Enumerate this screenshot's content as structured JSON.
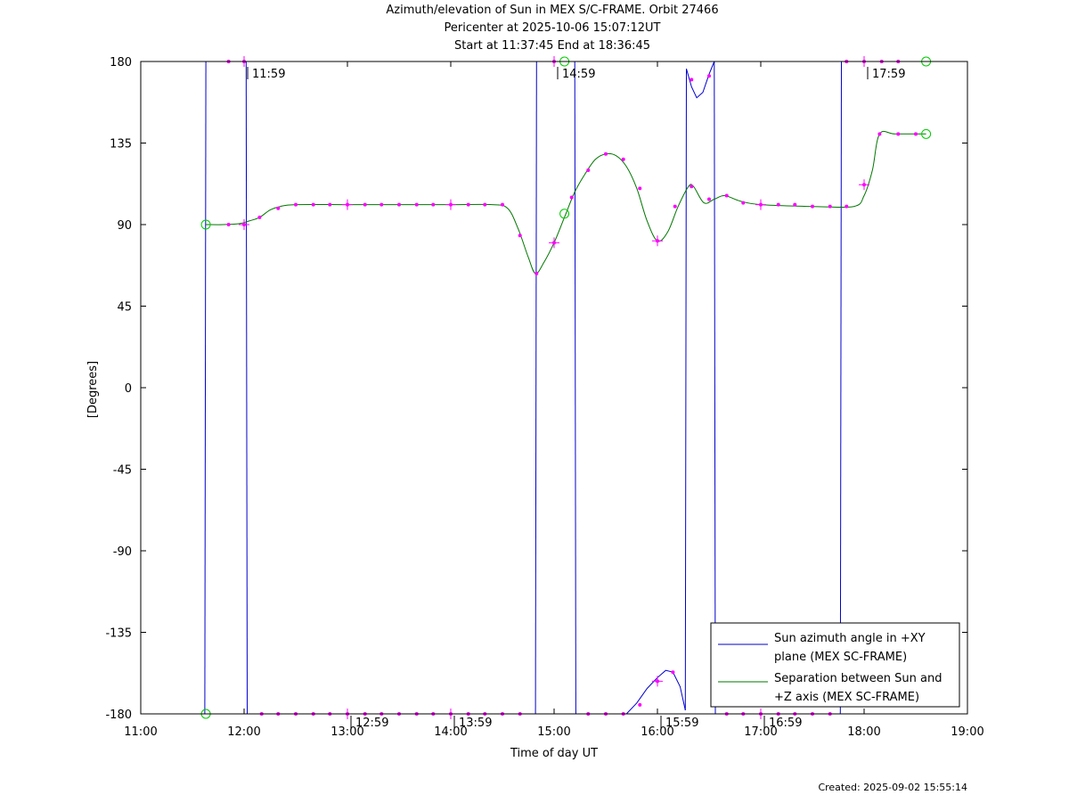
{
  "title": {
    "line1": "Azimuth/elevation of Sun in MEX S/C-FRAME.  Orbit 27466",
    "line2": "Pericenter at 2025-10-06 15:07:12UT",
    "line3": "Start at 11:37:45 End at 18:36:45"
  },
  "created": "Created: 2025-09-02 15:55:14",
  "chart_data": {
    "type": "line",
    "title": "Azimuth/elevation of Sun in MEX S/C-FRAME.  Orbit 27466",
    "xlabel": "Time of day UT",
    "ylabel": "[Degrees]",
    "x_unit": "hours of day UT",
    "xlim": [
      11.0,
      19.0
    ],
    "ylim": [
      -180,
      180
    ],
    "x_ticks": [
      "11:00",
      "12:00",
      "13:00",
      "14:00",
      "15:00",
      "16:00",
      "17:00",
      "18:00",
      "19:00"
    ],
    "y_ticks": [
      "180",
      "135",
      "90",
      "45",
      "0",
      "-45",
      "-90",
      "-135",
      "-180"
    ],
    "y_tick_values": [
      180,
      135,
      90,
      45,
      0,
      -45,
      -90,
      -135,
      -180
    ],
    "grid": false,
    "legend_position": "bottom-right",
    "colors": {
      "azimuth": "#0000cc",
      "separation": "#007700",
      "markers": "#ff00ff",
      "endpoints": "#00cc00"
    },
    "series": [
      {
        "name": "Sun azimuth angle in +XY plane (MEX SC-FRAME)",
        "legend_lines": [
          "Sun azimuth angle in +XY",
          "plane (MEX SC-FRAME)"
        ],
        "color": "#0000cc",
        "segments": [
          [
            [
              11.62,
              -180
            ],
            [
              11.63,
              180
            ]
          ],
          [
            [
              11.63,
              180
            ],
            [
              12.02,
              180
            ]
          ],
          [
            [
              12.02,
              180
            ],
            [
              12.03,
              -180
            ]
          ],
          [
            [
              12.03,
              -180
            ],
            [
              14.82,
              -180
            ]
          ],
          [
            [
              14.82,
              -180
            ],
            [
              14.83,
              180
            ]
          ],
          [
            [
              14.83,
              180
            ],
            [
              15.2,
              180
            ]
          ],
          [
            [
              15.2,
              180
            ],
            [
              15.21,
              -180
            ]
          ],
          [
            [
              15.21,
              -180
            ],
            [
              15.7,
              -180
            ],
            [
              15.8,
              -174
            ],
            [
              15.9,
              -166
            ],
            [
              16.0,
              -160
            ],
            [
              16.08,
              -156
            ],
            [
              16.15,
              -157
            ],
            [
              16.22,
              -165
            ],
            [
              16.27,
              -178
            ]
          ],
          [
            [
              16.27,
              -178
            ],
            [
              16.28,
              176
            ],
            [
              16.33,
              166
            ],
            [
              16.38,
              160
            ],
            [
              16.44,
              163
            ],
            [
              16.5,
              173
            ],
            [
              16.55,
              180
            ]
          ],
          [
            [
              16.55,
              180
            ],
            [
              16.56,
              -180
            ]
          ],
          [
            [
              16.56,
              -180
            ],
            [
              17.77,
              -180
            ]
          ],
          [
            [
              17.77,
              -180
            ],
            [
              17.78,
              180
            ]
          ],
          [
            [
              17.78,
              180
            ],
            [
              18.6,
              180
            ]
          ]
        ]
      },
      {
        "name": "Separation between Sun and +Z axis (MEX SC-FRAME)",
        "legend_lines": [
          "Separation between Sun and",
          "+Z axis (MEX SC-FRAME)"
        ],
        "color": "#007700",
        "points": [
          [
            11.63,
            90
          ],
          [
            11.8,
            90
          ],
          [
            11.95,
            90.5
          ],
          [
            12.05,
            92
          ],
          [
            12.15,
            94
          ],
          [
            12.25,
            98
          ],
          [
            12.35,
            100
          ],
          [
            12.5,
            101
          ],
          [
            13.0,
            101
          ],
          [
            13.5,
            101
          ],
          [
            14.0,
            101
          ],
          [
            14.4,
            101
          ],
          [
            14.55,
            99
          ],
          [
            14.65,
            88
          ],
          [
            14.75,
            72
          ],
          [
            14.82,
            63
          ],
          [
            14.9,
            69
          ],
          [
            15.0,
            80
          ],
          [
            15.1,
            94
          ],
          [
            15.2,
            108
          ],
          [
            15.3,
            118
          ],
          [
            15.4,
            126
          ],
          [
            15.5,
            129
          ],
          [
            15.6,
            128
          ],
          [
            15.7,
            122
          ],
          [
            15.8,
            110
          ],
          [
            15.9,
            92
          ],
          [
            16.0,
            81
          ],
          [
            16.1,
            86
          ],
          [
            16.2,
            100
          ],
          [
            16.3,
            111
          ],
          [
            16.35,
            111
          ],
          [
            16.45,
            102
          ],
          [
            16.55,
            104
          ],
          [
            16.65,
            106
          ],
          [
            16.8,
            103
          ],
          [
            17.0,
            101
          ],
          [
            17.5,
            100
          ],
          [
            17.9,
            100
          ],
          [
            18.0,
            106
          ],
          [
            18.08,
            120
          ],
          [
            18.15,
            140
          ],
          [
            18.3,
            140
          ],
          [
            18.6,
            140
          ]
        ]
      }
    ],
    "marker_points": [
      [
        11.85,
        180
      ],
      [
        12.0,
        180
      ],
      [
        11.85,
        90
      ],
      [
        12.0,
        90
      ],
      [
        12.15,
        94
      ],
      [
        12.33,
        99
      ],
      [
        12.5,
        101
      ],
      [
        12.67,
        101
      ],
      [
        12.83,
        101
      ],
      [
        13.0,
        101
      ],
      [
        13.17,
        101
      ],
      [
        13.33,
        101
      ],
      [
        13.5,
        101
      ],
      [
        13.67,
        101
      ],
      [
        13.83,
        101
      ],
      [
        14.0,
        101
      ],
      [
        14.17,
        101
      ],
      [
        14.33,
        101
      ],
      [
        14.5,
        101
      ],
      [
        14.67,
        84
      ],
      [
        14.83,
        63
      ],
      [
        15.0,
        80
      ],
      [
        15.17,
        105
      ],
      [
        15.33,
        120
      ],
      [
        15.5,
        129
      ],
      [
        15.67,
        126
      ],
      [
        15.83,
        110
      ],
      [
        16.0,
        81
      ],
      [
        16.17,
        100
      ],
      [
        16.33,
        111
      ],
      [
        16.5,
        104
      ],
      [
        16.67,
        106
      ],
      [
        16.83,
        102
      ],
      [
        17.0,
        101
      ],
      [
        17.17,
        101
      ],
      [
        17.33,
        101
      ],
      [
        17.5,
        100
      ],
      [
        17.67,
        100
      ],
      [
        17.83,
        100
      ],
      [
        18.0,
        112
      ],
      [
        18.15,
        140
      ],
      [
        18.33,
        140
      ],
      [
        18.5,
        140
      ],
      [
        15.0,
        180
      ],
      [
        16.33,
        170
      ],
      [
        16.5,
        172
      ],
      [
        17.83,
        180
      ],
      [
        18.0,
        180
      ],
      [
        18.17,
        180
      ],
      [
        18.33,
        180
      ],
      [
        12.17,
        -180
      ],
      [
        12.33,
        -180
      ],
      [
        12.5,
        -180
      ],
      [
        12.67,
        -180
      ],
      [
        12.83,
        -180
      ],
      [
        13.0,
        -180
      ],
      [
        13.17,
        -180
      ],
      [
        13.33,
        -180
      ],
      [
        13.5,
        -180
      ],
      [
        13.67,
        -180
      ],
      [
        13.83,
        -180
      ],
      [
        14.0,
        -180
      ],
      [
        14.17,
        -180
      ],
      [
        14.33,
        -180
      ],
      [
        14.5,
        -180
      ],
      [
        14.67,
        -180
      ],
      [
        15.33,
        -180
      ],
      [
        15.5,
        -180
      ],
      [
        15.67,
        -180
      ],
      [
        15.83,
        -175
      ],
      [
        16.0,
        -162
      ],
      [
        16.15,
        -157
      ],
      [
        16.67,
        -180
      ],
      [
        16.83,
        -180
      ],
      [
        17.0,
        -180
      ],
      [
        17.17,
        -180
      ],
      [
        17.33,
        -180
      ],
      [
        17.5,
        -180
      ],
      [
        17.67,
        -180
      ]
    ],
    "plus_markers": [
      [
        12.0,
        180
      ],
      [
        12.0,
        90
      ],
      [
        13.0,
        101
      ],
      [
        14.0,
        101
      ],
      [
        15.0,
        80
      ],
      [
        16.0,
        81
      ],
      [
        17.0,
        101
      ],
      [
        18.0,
        112
      ],
      [
        15.0,
        180
      ],
      [
        18.0,
        180
      ],
      [
        13.0,
        -180
      ],
      [
        14.0,
        -180
      ],
      [
        16.0,
        -162
      ],
      [
        17.0,
        -180
      ]
    ],
    "endpoint_markers": [
      [
        11.63,
        90
      ],
      [
        11.63,
        -180
      ],
      [
        15.1,
        180
      ],
      [
        15.1,
        96
      ],
      [
        18.6,
        180
      ],
      [
        18.6,
        140
      ]
    ],
    "annotations": [
      {
        "x": 12.0,
        "y": 180,
        "text": "11:59"
      },
      {
        "x": 13.0,
        "y": -180,
        "text": "12:59"
      },
      {
        "x": 14.0,
        "y": -180,
        "text": "13:59"
      },
      {
        "x": 15.0,
        "y": 180,
        "text": "14:59"
      },
      {
        "x": 16.0,
        "y": -180,
        "text": "15:59"
      },
      {
        "x": 17.0,
        "y": -180,
        "text": "16:59"
      },
      {
        "x": 18.0,
        "y": 180,
        "text": "17:59"
      }
    ]
  }
}
